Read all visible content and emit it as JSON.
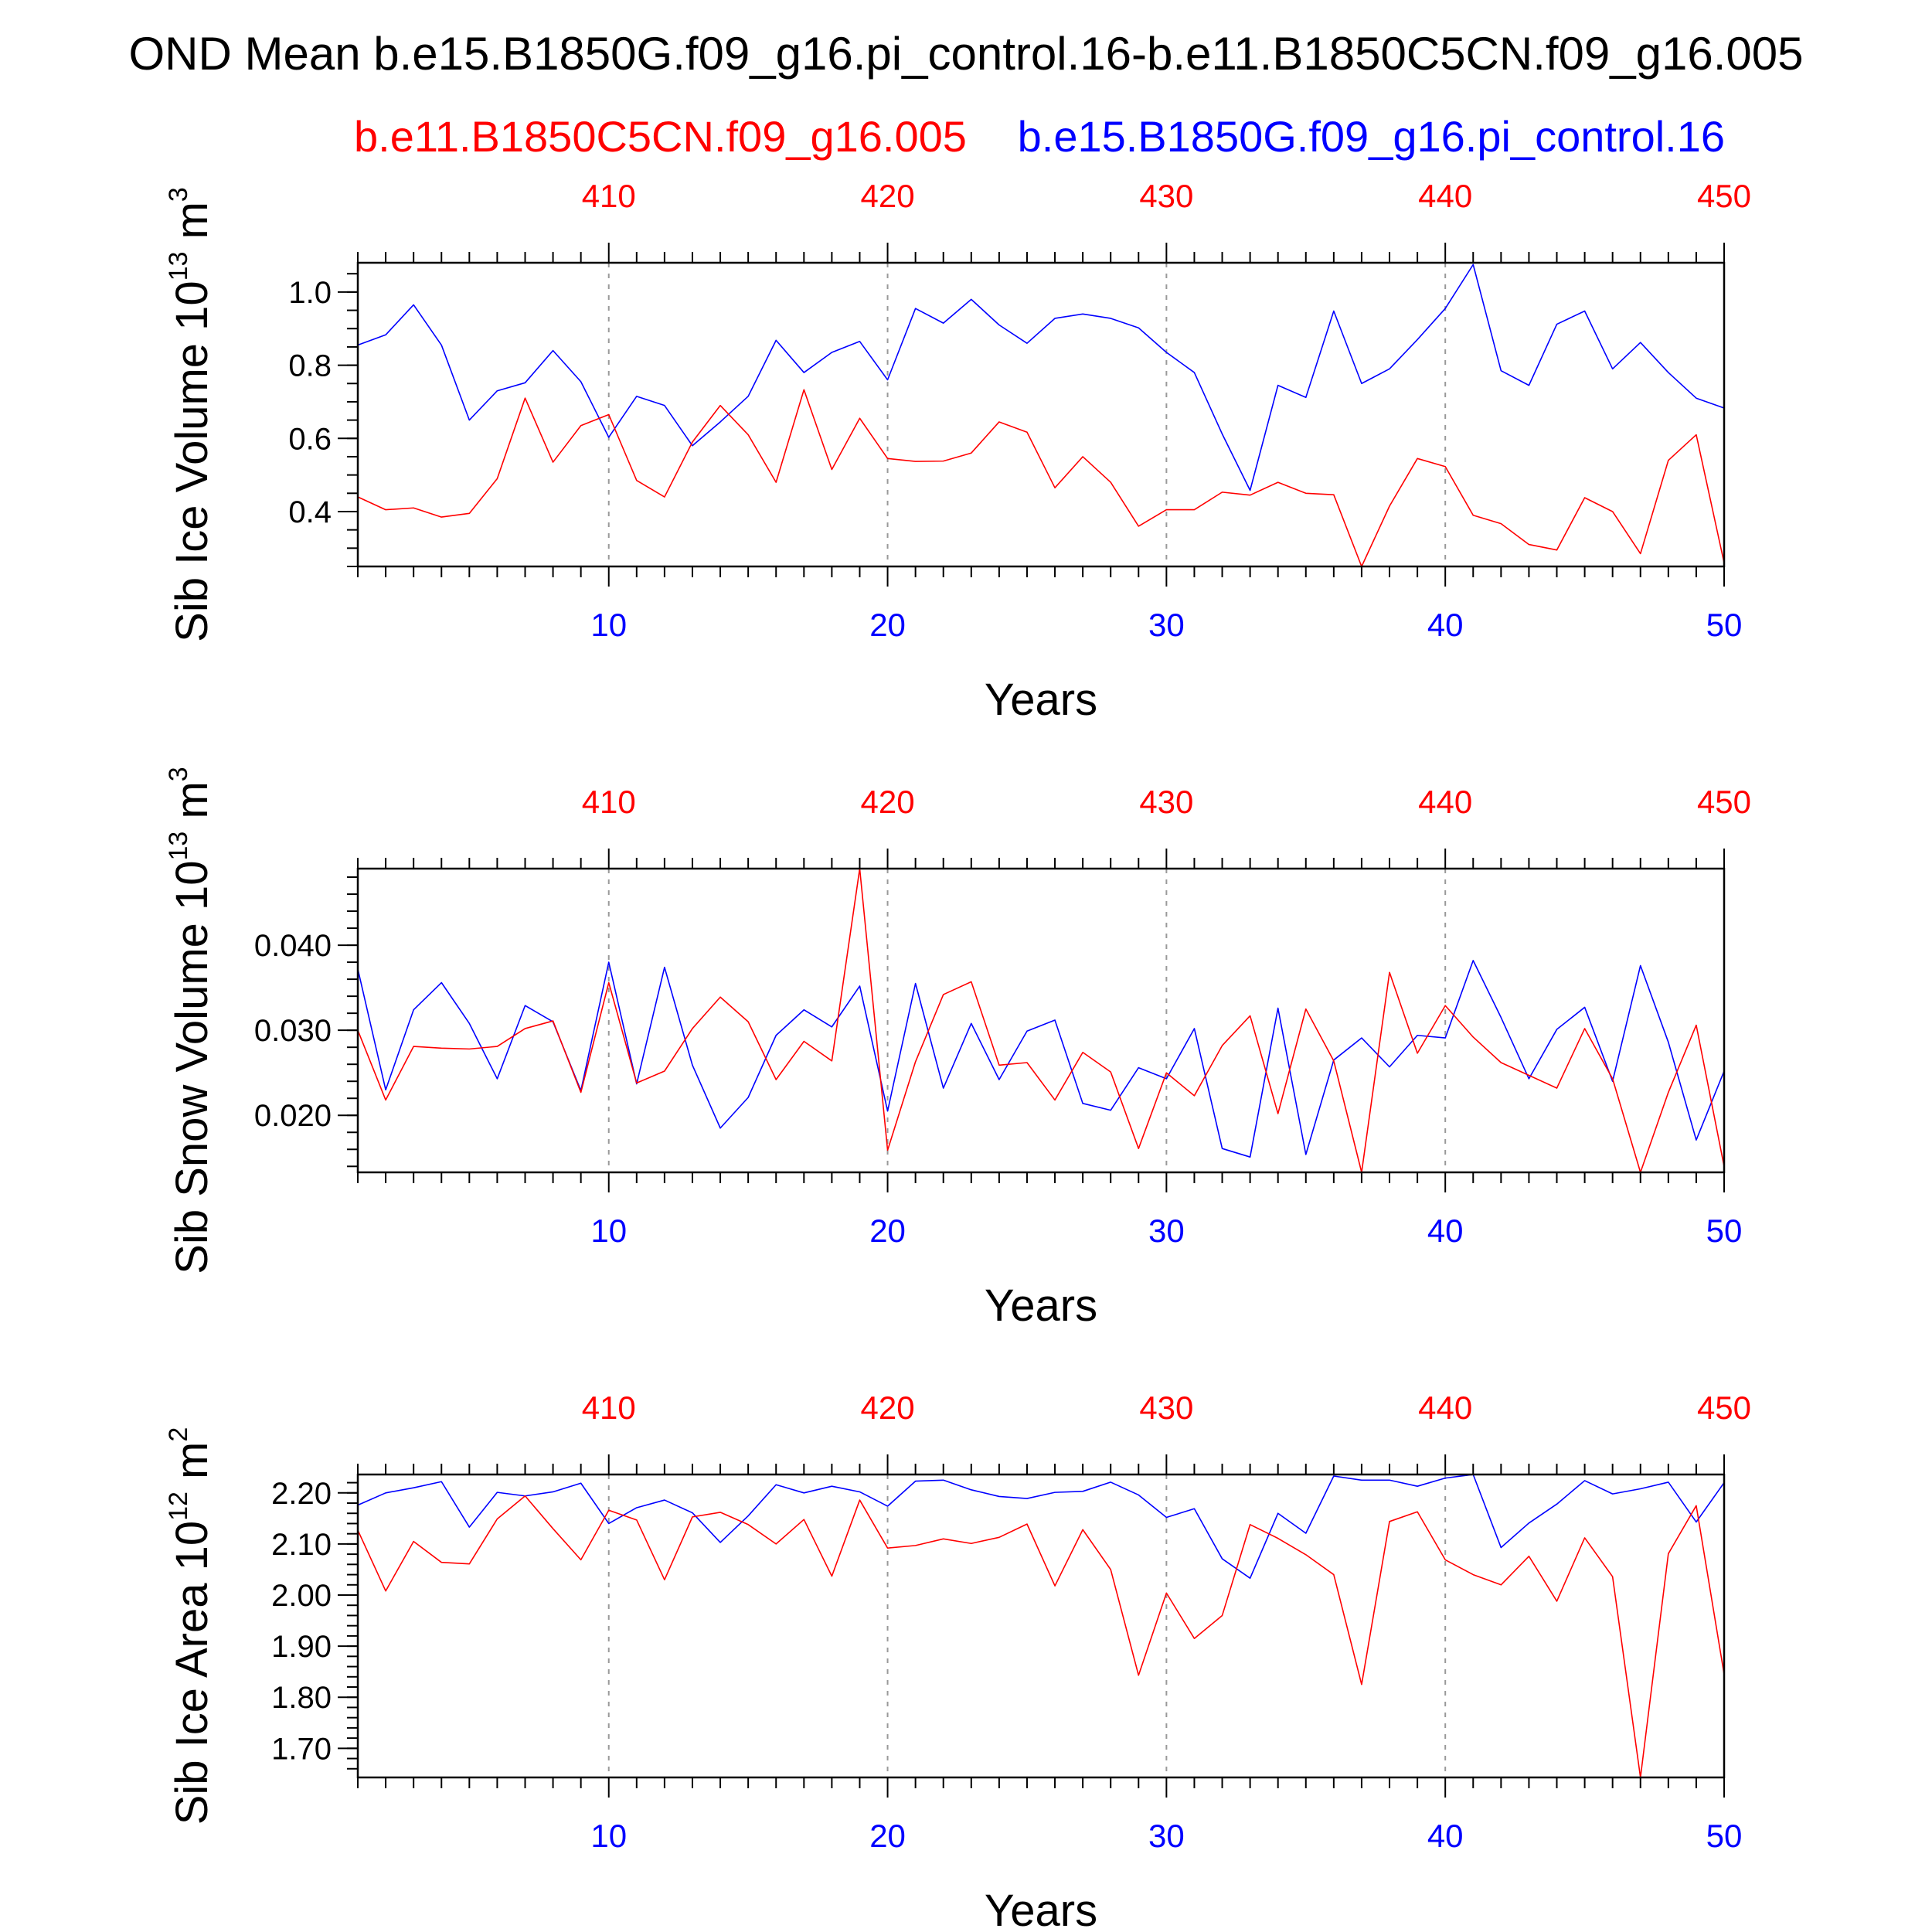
{
  "title": "OND Mean b.e15.B1850G.f09_g16.pi_control.16-b.e11.B1850C5CN.f09_g16.005",
  "subtitle_left": "b.e11.B1850C5CN.f09_g16.005",
  "subtitle_right": "b.e15.B1850G.f09_g16.pi_control.16",
  "colors": {
    "red_series": "#ff0000",
    "blue_series": "#0000ff",
    "axis": "#000000",
    "gridline": "#999999"
  },
  "chart_data": [
    {
      "type": "line",
      "ylabel_main": "Sib Ice Volume 10",
      "ylabel_exp": "13",
      "ylabel_unit": " m",
      "ylabel_unit_exp": "3",
      "xlabel": "Years",
      "xlim": [
        1,
        50
      ],
      "ylim": [
        0.25,
        1.08
      ],
      "yticks": [
        0.4,
        0.6,
        0.8,
        1.0
      ],
      "ytick_labels": [
        "0.4",
        "0.6",
        "0.8",
        "1.0"
      ],
      "yminor_step": 0.05,
      "xticks_bottom": [
        10,
        20,
        30,
        40,
        50
      ],
      "xticks_bottom_labels": [
        "10",
        "20",
        "30",
        "40",
        "50"
      ],
      "xticks_top": [
        10,
        20,
        30,
        40,
        50
      ],
      "xticks_top_labels": [
        "410",
        "420",
        "430",
        "440",
        "450"
      ],
      "gridlines_x": [
        10,
        20,
        30,
        40
      ],
      "series": [
        {
          "color": "#0000ff",
          "values": [
            0.855,
            0.883,
            0.965,
            0.855,
            0.65,
            0.73,
            0.752,
            0.84,
            0.755,
            0.603,
            0.715,
            0.69,
            0.58,
            0.645,
            0.715,
            0.868,
            0.78,
            0.835,
            0.865,
            0.76,
            0.955,
            0.915,
            0.98,
            0.91,
            0.86,
            0.928,
            0.94,
            0.928,
            0.902,
            0.835,
            0.78,
            0.612,
            0.458,
            0.745,
            0.712,
            0.948,
            0.75,
            0.79,
            0.87,
            0.955,
            1.075,
            0.785,
            0.745,
            0.912,
            0.948,
            0.79,
            0.862,
            0.78,
            0.71,
            0.683
          ]
        },
        {
          "color": "#ff0000",
          "values": [
            0.44,
            0.405,
            0.41,
            0.385,
            0.395,
            0.49,
            0.71,
            0.535,
            0.635,
            0.665,
            0.485,
            0.44,
            0.59,
            0.69,
            0.61,
            0.48,
            0.733,
            0.515,
            0.655,
            0.545,
            0.537,
            0.538,
            0.56,
            0.645,
            0.617,
            0.465,
            0.55,
            0.48,
            0.36,
            0.405,
            0.405,
            0.453,
            0.445,
            0.48,
            0.45,
            0.446,
            0.25,
            0.415,
            0.545,
            0.523,
            0.39,
            0.367,
            0.31,
            0.295,
            0.438,
            0.4,
            0.285,
            0.54,
            0.61,
            0.26
          ]
        }
      ]
    },
    {
      "type": "line",
      "ylabel_main": "Sib Snow Volume 10",
      "ylabel_exp": "13",
      "ylabel_unit": " m",
      "ylabel_unit_exp": "3",
      "xlabel": "Years",
      "xlim": [
        1,
        50
      ],
      "ylim": [
        0.0133,
        0.049
      ],
      "yticks": [
        0.02,
        0.03,
        0.04
      ],
      "ytick_labels": [
        "0.020",
        "0.030",
        "0.040"
      ],
      "yminor_step": 0.002,
      "xticks_bottom": [
        10,
        20,
        30,
        40,
        50
      ],
      "xticks_bottom_labels": [
        "10",
        "20",
        "30",
        "40",
        "50"
      ],
      "xticks_top": [
        10,
        20,
        30,
        40,
        50
      ],
      "xticks_top_labels": [
        "410",
        "420",
        "430",
        "440",
        "450"
      ],
      "gridlines_x": [
        10,
        20,
        30,
        40
      ],
      "series": [
        {
          "color": "#0000ff",
          "values": [
            0.0372,
            0.023,
            0.0324,
            0.0356,
            0.0308,
            0.0243,
            0.0329,
            0.031,
            0.0229,
            0.038,
            0.0237,
            0.0374,
            0.0259,
            0.0185,
            0.0221,
            0.0294,
            0.0324,
            0.0304,
            0.0352,
            0.0205,
            0.0355,
            0.0232,
            0.0308,
            0.0242,
            0.0299,
            0.0312,
            0.0214,
            0.0206,
            0.0256,
            0.0243,
            0.0302,
            0.0161,
            0.0151,
            0.0326,
            0.0154,
            0.0265,
            0.0291,
            0.0257,
            0.0294,
            0.0291,
            0.0382,
            0.0315,
            0.0243,
            0.0301,
            0.0327,
            0.024,
            0.0376,
            0.0286,
            0.0171,
            0.0252
          ]
        },
        {
          "color": "#ff0000",
          "values": [
            0.03,
            0.0218,
            0.0281,
            0.0279,
            0.0278,
            0.0281,
            0.0302,
            0.0311,
            0.0227,
            0.0356,
            0.0238,
            0.0252,
            0.0302,
            0.0339,
            0.031,
            0.0242,
            0.0287,
            0.0264,
            0.049,
            0.0159,
            0.0263,
            0.0342,
            0.0357,
            0.0259,
            0.0262,
            0.0218,
            0.0274,
            0.0251,
            0.0161,
            0.025,
            0.0223,
            0.0282,
            0.0317,
            0.0202,
            0.0325,
            0.0264,
            0.0133,
            0.0368,
            0.0273,
            0.0329,
            0.0292,
            0.0262,
            0.0247,
            0.0232,
            0.0302,
            0.0243,
            0.0133,
            0.0227,
            0.0306,
            0.014
          ]
        }
      ]
    },
    {
      "type": "line",
      "ylabel_main": "Sib Ice Area 10",
      "ylabel_exp": "12",
      "ylabel_unit": " m",
      "ylabel_unit_exp": "2",
      "xlabel": "Years",
      "xlim": [
        1,
        50
      ],
      "ylim": [
        1.643,
        2.236
      ],
      "yticks": [
        1.7,
        1.8,
        1.9,
        2.0,
        2.1,
        2.2
      ],
      "ytick_labels": [
        "1.70",
        "1.80",
        "1.90",
        "2.00",
        "2.10",
        "2.20"
      ],
      "yminor_step": 0.02,
      "xticks_bottom": [
        10,
        20,
        30,
        40,
        50
      ],
      "xticks_bottom_labels": [
        "10",
        "20",
        "30",
        "40",
        "50"
      ],
      "xticks_top": [
        10,
        20,
        30,
        40,
        50
      ],
      "xticks_top_labels": [
        "410",
        "420",
        "430",
        "440",
        "450"
      ],
      "gridlines_x": [
        10,
        20,
        30,
        40
      ],
      "series": [
        {
          "color": "#0000ff",
          "values": [
            2.176,
            2.2,
            2.21,
            2.222,
            2.133,
            2.201,
            2.194,
            2.202,
            2.219,
            2.14,
            2.171,
            2.186,
            2.161,
            2.103,
            2.155,
            2.216,
            2.2,
            2.213,
            2.202,
            2.174,
            2.223,
            2.225,
            2.206,
            2.193,
            2.189,
            2.201,
            2.203,
            2.221,
            2.196,
            2.152,
            2.169,
            2.071,
            2.033,
            2.16,
            2.121,
            2.233,
            2.225,
            2.225,
            2.213,
            2.229,
            2.236,
            2.093,
            2.141,
            2.178,
            2.224,
            2.198,
            2.208,
            2.221,
            2.143,
            2.22
          ]
        },
        {
          "color": "#ff0000",
          "values": [
            2.127,
            2.008,
            2.105,
            2.064,
            2.061,
            2.149,
            2.194,
            2.13,
            2.069,
            2.166,
            2.147,
            2.03,
            2.153,
            2.162,
            2.138,
            2.1,
            2.148,
            2.037,
            2.186,
            2.092,
            2.097,
            2.11,
            2.101,
            2.113,
            2.139,
            2.018,
            2.128,
            2.05,
            1.843,
            2.004,
            1.915,
            1.96,
            2.138,
            2.111,
            2.079,
            2.04,
            1.825,
            2.144,
            2.163,
            2.069,
            2.04,
            2.02,
            2.076,
            1.988,
            2.112,
            2.036,
            1.643,
            2.081,
            2.175,
            1.845
          ]
        }
      ]
    }
  ]
}
